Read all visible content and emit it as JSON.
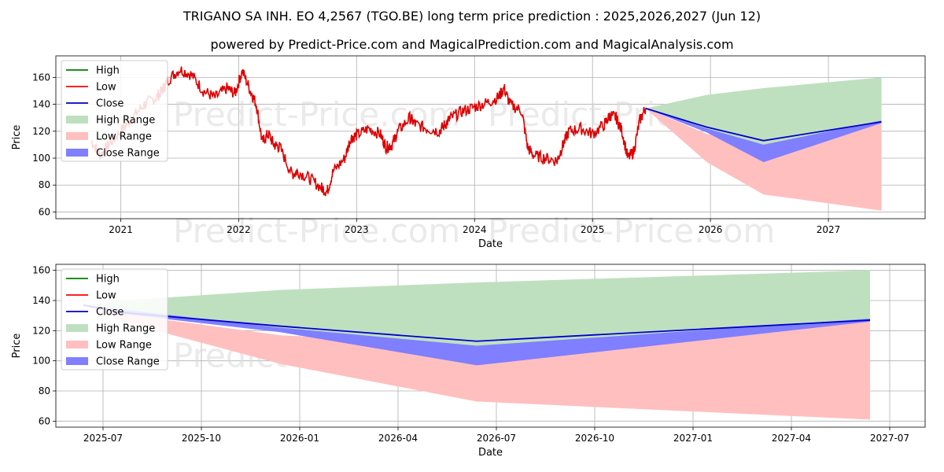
{
  "header": {
    "title": "TRIGANO SA INH. EO 4,2567 (TGO.BE) long term price prediction : 2025,2026,2027 (Jun 12)",
    "subtitle": "powered by Predict-Price.com and MagicalPrediction.com and MagicalAnalysis.com"
  },
  "watermark": "Predict-Price.com",
  "colors": {
    "high": "#008000",
    "low": "#ff0000",
    "close": "#0000cc",
    "high_range": "#bfe0bf",
    "low_range": "#ffbfbf",
    "close_range": "#7f7fff",
    "history": "#dd0000"
  },
  "legend": {
    "high": "High",
    "low": "Low",
    "close": "Close",
    "high_range": "High Range",
    "low_range": "Low Range",
    "close_range": "Close Range"
  },
  "chart_data": [
    {
      "type": "line",
      "title": "TRIGANO SA INH. EO 4,2567 (TGO.BE) long term price prediction : 2025,2026,2027 (Jun 12)",
      "xlabel": "Date",
      "ylabel": "Price",
      "xlim": [
        2020.45,
        2027.82
      ],
      "ylim": [
        55,
        176
      ],
      "xticks": [
        {
          "v": 2021,
          "label": "2021"
        },
        {
          "v": 2022,
          "label": "2022"
        },
        {
          "v": 2023,
          "label": "2023"
        },
        {
          "v": 2024,
          "label": "2024"
        },
        {
          "v": 2025,
          "label": "2025"
        },
        {
          "v": 2026,
          "label": "2026"
        },
        {
          "v": 2027,
          "label": "2027"
        }
      ],
      "yticks": [
        60,
        80,
        100,
        120,
        140,
        160
      ],
      "grid": true,
      "legend_position": "top-left",
      "history": {
        "name": "Low",
        "x": [
          2020.75,
          2020.83,
          2020.9,
          2021.0,
          2021.1,
          2021.2,
          2021.3,
          2021.35,
          2021.4,
          2021.5,
          2021.6,
          2021.7,
          2021.8,
          2021.9,
          2021.97,
          2022.03,
          2022.1,
          2022.15,
          2022.2,
          2022.25,
          2022.3,
          2022.35,
          2022.45,
          2022.5,
          2022.6,
          2022.7,
          2022.75,
          2022.8,
          2022.9,
          2022.95,
          2023.0,
          2023.1,
          2023.2,
          2023.25,
          2023.3,
          2023.35,
          2023.45,
          2023.5,
          2023.6,
          2023.7,
          2023.75,
          2023.8,
          2023.9,
          2024.0,
          2024.1,
          2024.2,
          2024.25,
          2024.3,
          2024.4,
          2024.45,
          2024.5,
          2024.6,
          2024.7,
          2024.75,
          2024.8,
          2024.9,
          2025.0,
          2025.1,
          2025.15,
          2025.2,
          2025.25,
          2025.3,
          2025.35,
          2025.4,
          2025.45
        ],
        "values": [
          113,
          102,
          110,
          120,
          130,
          140,
          145,
          150,
          158,
          166,
          162,
          150,
          145,
          152,
          148,
          165,
          150,
          140,
          112,
          118,
          110,
          108,
          88,
          90,
          85,
          78,
          75,
          90,
          100,
          115,
          117,
          122,
          118,
          108,
          110,
          120,
          130,
          125,
          122,
          120,
          125,
          130,
          135,
          138,
          141,
          145,
          152,
          140,
          135,
          108,
          102,
          100,
          98,
          110,
          120,
          122,
          118,
          125,
          132,
          130,
          120,
          100,
          105,
          128,
          137
        ]
      },
      "forecast": {
        "x": [
          2025.45,
          2025.97,
          2026.45,
          2027.45
        ],
        "high_range": {
          "upper": [
            137,
            147,
            152,
            160
          ],
          "lower": [
            137,
            121,
            107,
            128
          ]
        },
        "low_range": {
          "upper": [
            137,
            118,
            110,
            126
          ],
          "lower": [
            137,
            97,
            73,
            61
          ]
        },
        "close_range": {
          "upper": [
            137,
            122,
            110,
            128
          ],
          "lower": [
            137,
            119,
            97,
            126
          ]
        },
        "close": [
          137,
          123,
          113,
          127
        ]
      }
    },
    {
      "type": "line",
      "xlabel": "Date",
      "ylabel": "Price",
      "xlim": [
        2025.38,
        2027.59
      ],
      "ylim": [
        56,
        164
      ],
      "xticks": [
        {
          "v": 2025.5,
          "label": "2025-07"
        },
        {
          "v": 2025.75,
          "label": "2025-10"
        },
        {
          "v": 2026.0,
          "label": "2026-01"
        },
        {
          "v": 2026.25,
          "label": "2026-04"
        },
        {
          "v": 2026.5,
          "label": "2026-07"
        },
        {
          "v": 2026.75,
          "label": "2026-10"
        },
        {
          "v": 2027.0,
          "label": "2027-01"
        },
        {
          "v": 2027.25,
          "label": "2027-04"
        },
        {
          "v": 2027.5,
          "label": "2027-07"
        }
      ],
      "yticks": [
        60,
        80,
        100,
        120,
        140,
        160
      ],
      "grid": true,
      "legend_position": "top-left",
      "forecast": {
        "x": [
          2025.45,
          2025.55,
          2025.95,
          2026.45,
          2027.45
        ],
        "high_range": {
          "upper": [
            137,
            140,
            147,
            152,
            160
          ],
          "lower": [
            137,
            134,
            122,
            107,
            128
          ]
        },
        "low_range": {
          "upper": [
            137,
            131,
            117,
            110,
            126
          ],
          "lower": [
            137,
            126,
            98,
            73,
            61
          ]
        },
        "close_range": {
          "upper": [
            137,
            134,
            122,
            110,
            128
          ],
          "lower": [
            137,
            131,
            119,
            97,
            126
          ]
        },
        "close": [
          137,
          132,
          123,
          113,
          127
        ]
      }
    }
  ]
}
